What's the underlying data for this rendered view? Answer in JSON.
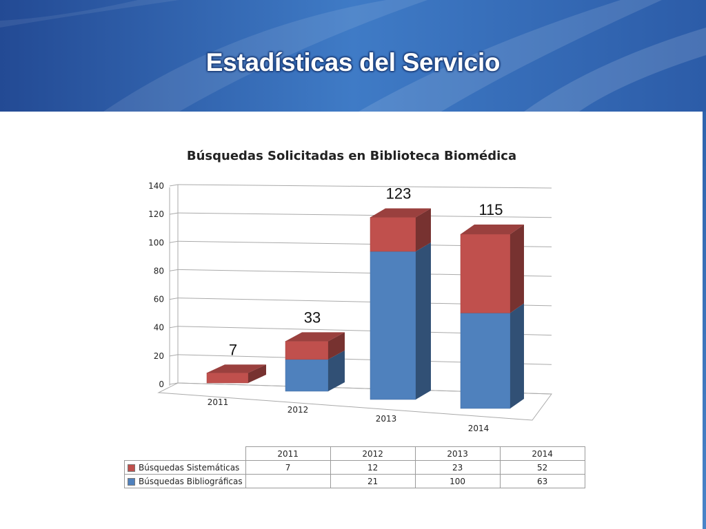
{
  "slide": {
    "title": "Estadísticas del Servicio"
  },
  "chart_data": {
    "type": "bar",
    "stacked": true,
    "three_d": true,
    "title": "Búsquedas Solicitadas en Biblioteca Biomédica",
    "categories": [
      "2011",
      "2012",
      "2013",
      "2014"
    ],
    "series": [
      {
        "name": "Búsquedas Bibliográficas",
        "values": [
          0,
          21,
          100,
          63
        ],
        "labels": [
          "",
          "21",
          "100",
          "63"
        ],
        "color": "#4f81bd"
      },
      {
        "name": "Búsquedas Sistemáticas",
        "values": [
          7,
          12,
          23,
          52
        ],
        "labels": [
          "7",
          "12",
          "23",
          "52"
        ],
        "color": "#c0504d"
      }
    ],
    "total_labels": [
      "7",
      "33",
      "123",
      "115"
    ],
    "yticks": [
      "0",
      "20",
      "40",
      "60",
      "80",
      "100",
      "120",
      "140"
    ],
    "ylim": [
      0,
      140
    ],
    "grid": true,
    "legend": "data-table-below"
  }
}
